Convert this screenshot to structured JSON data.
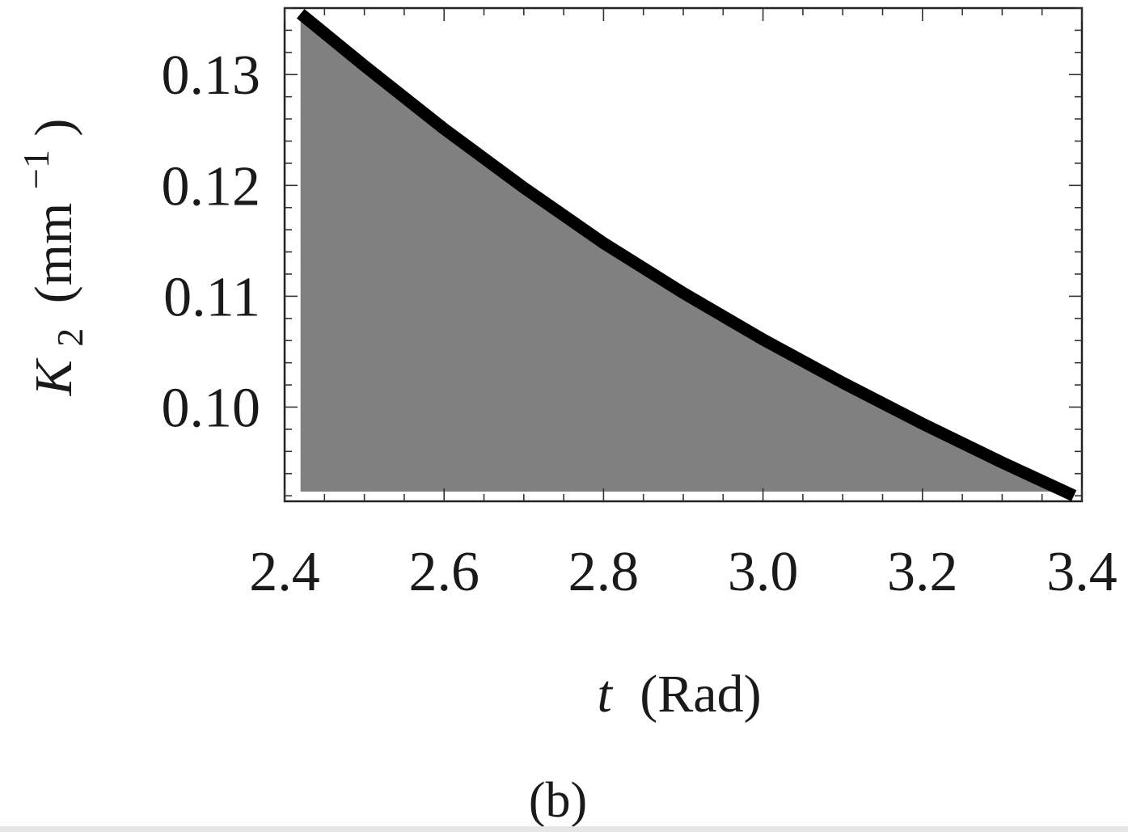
{
  "chart_data": {
    "type": "area",
    "caption": "(b)",
    "xlabel": {
      "symbol": "t",
      "unit": "(Rad)"
    },
    "ylabel": {
      "symbol": "K",
      "subscript": "2",
      "unit_open": "(mm",
      "unit_exp": "−1",
      "unit_close": ")"
    },
    "xlim": [
      2.4,
      3.4
    ],
    "ylim": [
      0.0915,
      0.136
    ],
    "xticks": [
      "2.4",
      "2.6",
      "2.8",
      "3.0",
      "3.2",
      "3.4"
    ],
    "yticks": [
      "0.13",
      "0.12",
      "0.11",
      "0.10"
    ],
    "fill_color": "#808080",
    "line_color": "#000000",
    "series": [
      {
        "x": [
          2.42,
          2.5,
          2.6,
          2.7,
          2.8,
          2.9,
          3.0,
          3.1,
          3.2,
          3.3,
          3.39
        ],
        "y": [
          0.1355,
          0.1308,
          0.1251,
          0.1198,
          0.1148,
          0.1103,
          0.1061,
          0.1022,
          0.0985,
          0.095,
          0.092
        ]
      }
    ]
  }
}
